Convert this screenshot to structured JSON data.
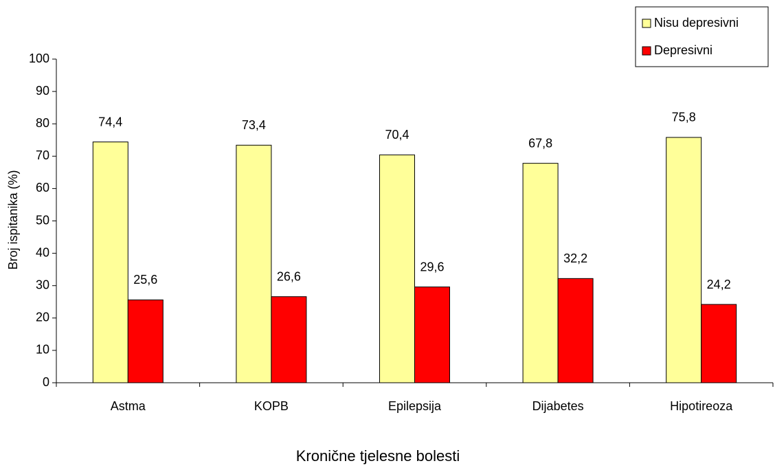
{
  "chart_data": {
    "type": "bar",
    "x_label": "Kronične tjelesne bolesti",
    "y_label": "Broj ispitanika (%)",
    "categories": [
      "Astma",
      "KOPB",
      "Epilepsija",
      "Dijabetes",
      "Hipotireoza"
    ],
    "series": [
      {
        "name": "Nisu depresivni",
        "color": "#ffff99",
        "values": [
          74.4,
          73.4,
          70.4,
          67.8,
          75.8
        ],
        "value_labels": [
          "74,4",
          "73,4",
          "70,4",
          "67,8",
          "75,8"
        ]
      },
      {
        "name": "Depresivni",
        "color": "#ff0000",
        "values": [
          25.6,
          26.6,
          29.6,
          32.2,
          24.2
        ],
        "value_labels": [
          "25,6",
          "26,6",
          "29,6",
          "32,2",
          "24,2"
        ]
      }
    ],
    "ylim": [
      0,
      100
    ],
    "yticks": [
      0,
      10,
      20,
      30,
      40,
      50,
      60,
      70,
      80,
      90,
      100
    ],
    "legend": "top-right"
  }
}
